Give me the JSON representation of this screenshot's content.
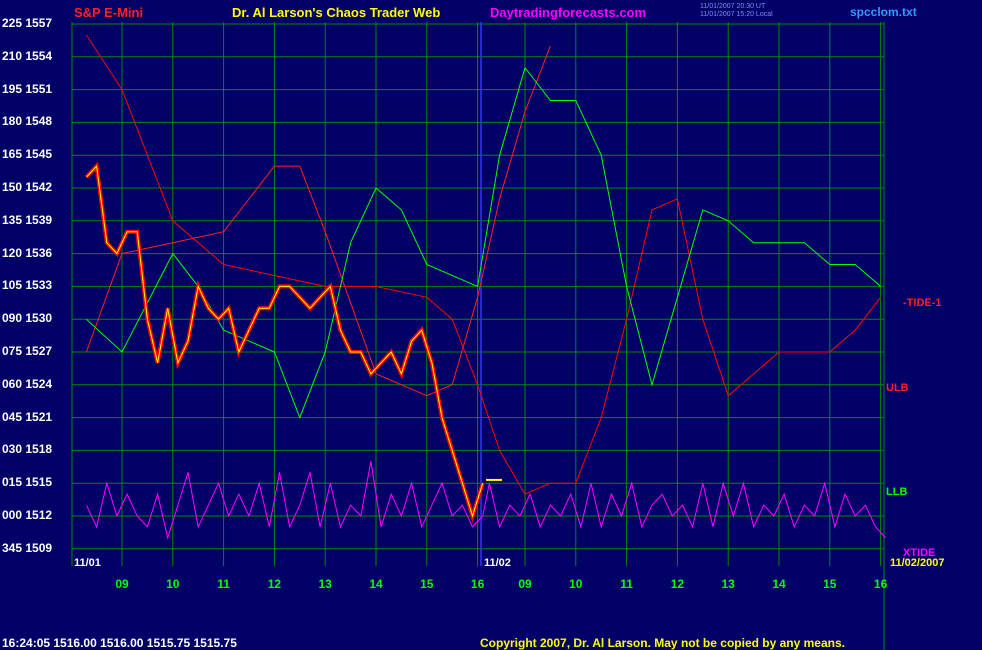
{
  "header": {
    "symbol": "S&P E-Mini",
    "title": "Dr. Al Larson's Chaos Trader Web",
    "site": "Daytradingforecasts.com",
    "stamp1": "11/01/2007 20:30 UT",
    "stamp2": "11/01/2007 15:20 Local",
    "file": "spcclom.txt"
  },
  "footer": {
    "quote": "16:24:05  1516.00 1516.00 1515.75 1515.75",
    "copyright": "Copyright 2007, Dr. Al Larson. May not be copied by any means."
  },
  "colors": {
    "bg": "#000066",
    "grid": "#008800",
    "price": "#ff0000",
    "white": "#ffffff",
    "yellow": "#ffff00",
    "tide": "#ff0000",
    "ulb": "#ff2020",
    "llb": "#00ff00",
    "xtide": "#ff00ff",
    "blue": "#3333ff"
  },
  "chart_data": {
    "type": "line",
    "title": "S&P E-Mini",
    "y_labels": [
      {
        "osc": "225",
        "price": "1557"
      },
      {
        "osc": "210",
        "price": "1554"
      },
      {
        "osc": "195",
        "price": "1551"
      },
      {
        "osc": "180",
        "price": "1548"
      },
      {
        "osc": "165",
        "price": "1545"
      },
      {
        "osc": "150",
        "price": "1542"
      },
      {
        "osc": "135",
        "price": "1539"
      },
      {
        "osc": "120",
        "price": "1536"
      },
      {
        "osc": "105",
        "price": "1533"
      },
      {
        "osc": "090",
        "price": "1530"
      },
      {
        "osc": "075",
        "price": "1527"
      },
      {
        "osc": "060",
        "price": "1524"
      },
      {
        "osc": "045",
        "price": "1521"
      },
      {
        "osc": "030",
        "price": "1518"
      },
      {
        "osc": "015",
        "price": "1515"
      },
      {
        "osc": "000",
        "price": "1512"
      },
      {
        "osc": "345",
        "price": "1509"
      }
    ],
    "ylim": [
      1509,
      1557
    ],
    "date_labels": [
      "11/01",
      "11/02",
      "11/02/2007"
    ],
    "x_ticks": [
      "09",
      "10",
      "11",
      "12",
      "13",
      "14",
      "15",
      "16",
      "09",
      "10",
      "11",
      "12",
      "13",
      "14",
      "15",
      "16"
    ],
    "series_labels": {
      "tide": "-TIDE-1",
      "ulb": "ULB",
      "llb": "LLB",
      "xtide": "XTIDE"
    },
    "price_hours": [
      8.3,
      8.5,
      8.7,
      8.9,
      9.1,
      9.3,
      9.5,
      9.7,
      9.9,
      10.1,
      10.3,
      10.5,
      10.7,
      10.9,
      11.1,
      11.3,
      11.5,
      11.7,
      11.9,
      12.1,
      12.3,
      12.5,
      12.7,
      12.9,
      13.1,
      13.3,
      13.5,
      13.7,
      13.9,
      14.1,
      14.3,
      14.5,
      14.7,
      14.9,
      15.1,
      15.3,
      15.5,
      15.7,
      15.9,
      16.1
    ],
    "price": [
      1543,
      1544,
      1537,
      1536,
      1538,
      1538,
      1530,
      1526,
      1531,
      1526,
      1528,
      1533,
      1531,
      1530,
      1531,
      1527,
      1529,
      1531,
      1531,
      1533,
      1533,
      1532,
      1531,
      1532,
      1533,
      1529,
      1527,
      1527,
      1525,
      1526,
      1527,
      1525,
      1528,
      1529,
      1526,
      1521,
      1518,
      1515,
      1512,
      1515
    ],
    "tide_hours": [
      8.3,
      9,
      10,
      11,
      12,
      13,
      14,
      15,
      15.5,
      16,
      16.5,
      17,
      17.5,
      18,
      18.5,
      19,
      19.5,
      20,
      20.5,
      21,
      21.5,
      22,
      22.5,
      23,
      23.5,
      24
    ],
    "tide": [
      1556,
      1551,
      1539,
      1535,
      1534,
      1533,
      1533,
      1532,
      1530,
      1524,
      1518,
      1514,
      1515,
      1515,
      1521,
      1530,
      1540,
      1541,
      1530,
      1523,
      1525,
      1527,
      1527,
      1527,
      1529,
      1532
    ],
    "ulb_hours": [
      8.3,
      9,
      10,
      11,
      12,
      12.5,
      13,
      14,
      15,
      15.5,
      16,
      16.5,
      17,
      17.5
    ],
    "ulb": [
      1527,
      1536,
      1537,
      1538,
      1544,
      1544,
      1538,
      1525,
      1523,
      1524,
      1532,
      1541,
      1549,
      1555
    ],
    "llb_hours": [
      8.3,
      9,
      10,
      10.5,
      11,
      12,
      12.5,
      13,
      13.5,
      14,
      14.5,
      15,
      16,
      16.5,
      17,
      17.5,
      18,
      18.5,
      19,
      19.5,
      20,
      20.5,
      21,
      21.5,
      22,
      22.5,
      23,
      23.5,
      24
    ],
    "llb": [
      1530,
      1527,
      1536,
      1533,
      1529,
      1527,
      1521,
      1527,
      1537,
      1542,
      1540,
      1535,
      1533,
      1545,
      1553,
      1550,
      1550,
      1545,
      1533,
      1524,
      1532,
      1540,
      1539,
      1537,
      1537,
      1537,
      1535,
      1535,
      1533
    ],
    "xtide_hours": [
      8.3,
      8.5,
      8.7,
      8.9,
      9.1,
      9.3,
      9.5,
      9.7,
      9.9,
      10.1,
      10.3,
      10.5,
      10.7,
      10.9,
      11.1,
      11.3,
      11.5,
      11.7,
      11.9,
      12.1,
      12.3,
      12.5,
      12.7,
      12.9,
      13.1,
      13.3,
      13.5,
      13.7,
      13.9,
      14.1,
      14.3,
      14.5,
      14.7,
      14.9,
      15.1,
      15.3,
      15.5,
      15.7,
      15.9,
      16.1,
      16.3,
      16.5,
      16.7,
      16.9,
      17.1,
      17.3,
      17.5,
      17.7,
      17.9,
      18.1,
      18.3,
      18.5,
      18.7,
      18.9,
      19.1,
      19.3,
      19.5,
      19.7,
      19.9,
      20.1,
      20.3,
      20.5,
      20.7,
      20.9,
      21.1,
      21.3,
      21.5,
      21.7,
      21.9,
      22.1,
      22.3,
      22.5,
      22.7,
      22.9,
      23.1,
      23.3,
      23.5,
      23.7,
      23.9,
      24.1
    ],
    "xtide": [
      1513,
      1511,
      1515,
      1512,
      1514,
      1512,
      1511,
      1514,
      1510,
      1513,
      1516,
      1511,
      1513,
      1515,
      1512,
      1514,
      1512,
      1515,
      1511,
      1516,
      1511,
      1513,
      1516,
      1511,
      1515,
      1511,
      1513,
      1512,
      1517,
      1511,
      1514,
      1512,
      1515,
      1511,
      1513,
      1515,
      1512,
      1513,
      1511,
      1512,
      1515,
      1511,
      1513,
      1512,
      1514,
      1511,
      1513,
      1512,
      1514,
      1511,
      1515,
      1511,
      1514,
      1512,
      1515,
      1511,
      1513,
      1514,
      1512,
      1513,
      1511,
      1515,
      1511,
      1515,
      1512,
      1515,
      1511,
      1513,
      1512,
      1514,
      1511,
      1513,
      1512,
      1515,
      1511,
      1514,
      1512,
      1513,
      1511,
      1510
    ]
  }
}
